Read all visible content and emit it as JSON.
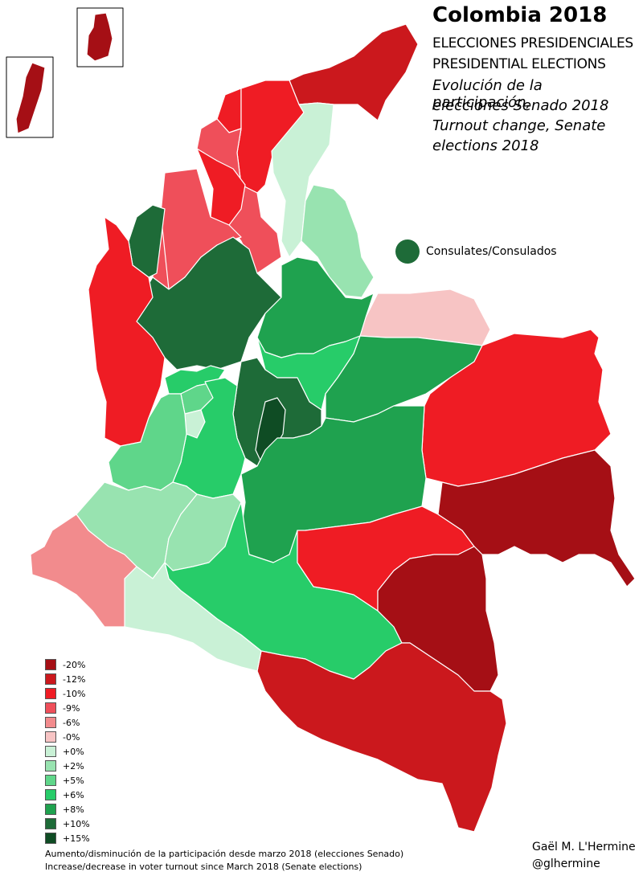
{
  "title": "Colombia 2018",
  "subtitle_es": "ELECCIONES PRESIDENCIALES",
  "subtitle_en": "PRESIDENTIAL ELECTIONS",
  "description": [
    "Evolución de la participación,",
    "elecciones Senado 2018",
    "Turnout change, Senate",
    "elections 2018"
  ],
  "consulates_label": "Consulates/Consulados",
  "legend": [
    {
      "label": "-20%",
      "color": "#a50f15"
    },
    {
      "label": "-12%",
      "color": "#cb181d"
    },
    {
      "label": "-10%",
      "color": "#ef1c24"
    },
    {
      "label": "-9%",
      "color": "#ef4f5a"
    },
    {
      "label": "-6%",
      "color": "#f28b8d"
    },
    {
      "label": "-0%",
      "color": "#f7c4c4"
    },
    {
      "label": "+0%",
      "color": "#c9f1d6"
    },
    {
      "label": "+2%",
      "color": "#98e3b0"
    },
    {
      "label": "+5%",
      "color": "#5fd68a"
    },
    {
      "label": "+6%",
      "color": "#27cc69"
    },
    {
      "label": "+8%",
      "color": "#1fa24f"
    },
    {
      "label": "+10%",
      "color": "#1e6b38"
    },
    {
      "label": "+15%",
      "color": "#0f4c24"
    }
  ],
  "footer": {
    "line_es": "Aumento/disminución de la participación desde marzo 2018 (elecciones Senado)",
    "line_en": "Increase/decrease in voter turnout since March 2018 (Senate elections)"
  },
  "credit": {
    "name": "Gaël M. L'Hermine",
    "handle": "@glhermine"
  }
}
